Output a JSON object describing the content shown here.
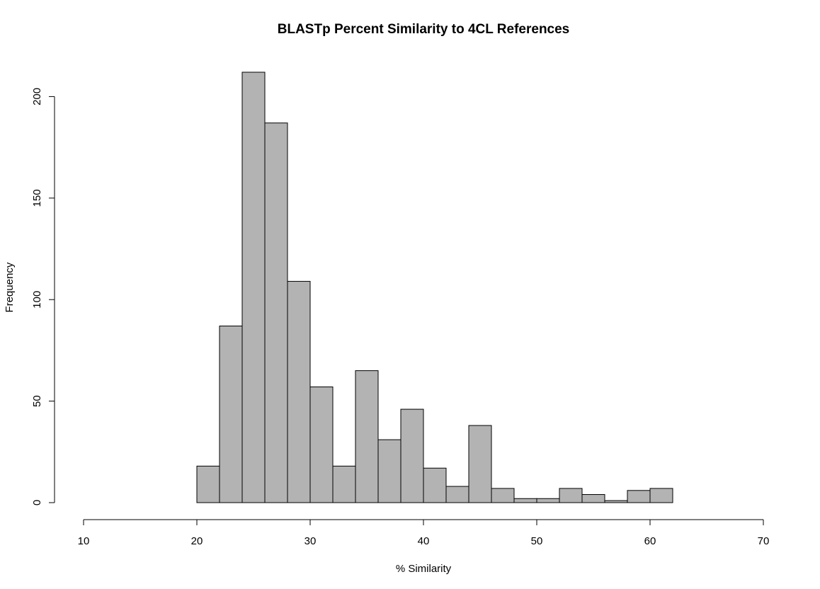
{
  "chart_data": {
    "type": "bar",
    "subtype": "histogram",
    "title": "BLASTp Percent Similarity to 4CL References",
    "xlabel": "% Similarity",
    "ylabel": "Frequency",
    "xlim": [
      10,
      70
    ],
    "ylim": [
      0,
      212
    ],
    "x_ticks": [
      10,
      20,
      30,
      40,
      50,
      60,
      70
    ],
    "y_ticks": [
      0,
      50,
      100,
      150,
      200
    ],
    "bin_width": 2,
    "bins": [
      {
        "start": 20,
        "end": 22,
        "count": 18
      },
      {
        "start": 22,
        "end": 24,
        "count": 87
      },
      {
        "start": 24,
        "end": 26,
        "count": 212
      },
      {
        "start": 26,
        "end": 28,
        "count": 187
      },
      {
        "start": 28,
        "end": 30,
        "count": 109
      },
      {
        "start": 30,
        "end": 32,
        "count": 57
      },
      {
        "start": 32,
        "end": 34,
        "count": 18
      },
      {
        "start": 34,
        "end": 36,
        "count": 65
      },
      {
        "start": 36,
        "end": 38,
        "count": 31
      },
      {
        "start": 38,
        "end": 40,
        "count": 46
      },
      {
        "start": 40,
        "end": 42,
        "count": 17
      },
      {
        "start": 42,
        "end": 44,
        "count": 8
      },
      {
        "start": 44,
        "end": 46,
        "count": 38
      },
      {
        "start": 46,
        "end": 48,
        "count": 7
      },
      {
        "start": 48,
        "end": 50,
        "count": 2
      },
      {
        "start": 50,
        "end": 52,
        "count": 2
      },
      {
        "start": 52,
        "end": 54,
        "count": 7
      },
      {
        "start": 54,
        "end": 56,
        "count": 4
      },
      {
        "start": 56,
        "end": 58,
        "count": 1
      },
      {
        "start": 58,
        "end": 60,
        "count": 6
      },
      {
        "start": 60,
        "end": 62,
        "count": 7
      }
    ],
    "bar_color": "#b3b3b3",
    "edge_color": "#000000",
    "grid": false,
    "legend": "none"
  }
}
